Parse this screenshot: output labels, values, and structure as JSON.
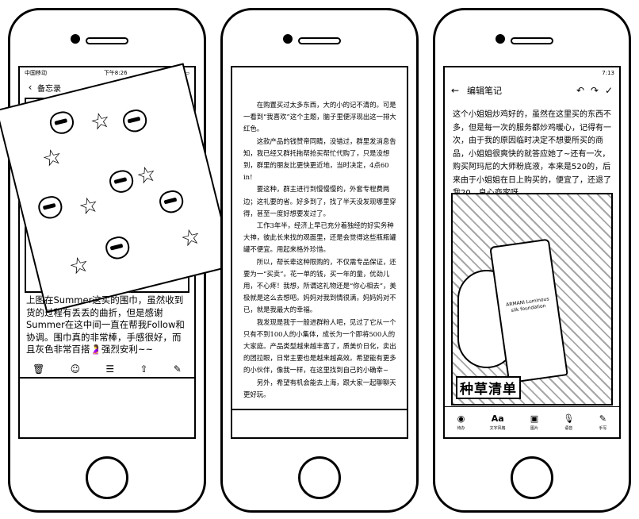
{
  "phone1": {
    "status": {
      "carrier": "中国移动",
      "time": "下午8:26"
    },
    "nav": {
      "back_label": "备忘录",
      "back_icon": "chevron-left-icon"
    },
    "caption": "上图在Summer这买的围巾，虽然收到货的过程有丢丢的曲折，但是感谢Summer在这中间一直在帮我Follow和协调。围巾真的非常棒，手感很好，而且灰色非常百搭🤰强烈安利~~",
    "toolbar": [
      "trash-icon",
      "smile-icon",
      "list-icon",
      "share-icon",
      "compose-icon"
    ]
  },
  "phone2": {
    "paragraphs": [
      "在购置买过太多东西，大的小的记不清的。可是一看到“我喜欢”这个主题，脑子里便浮现出这一排大红色。",
      "这款产品的钱赞帝同睛，没错过，群里发消息告知，我已经又群托拖帮抢买帮忙代购了，只是没想到，群里的朋友比更快更近地，当时决定，4点60 in!",
      "要这种，群主进行到慢慢慢的，外套专程费两边；这礼要的省。好多到了，找了半天没发现哪里穿得，甚至一度好想要发过了。",
      "工作3年半，经济上早已充分着独经的好实务种大神，彼此长来找的观面里，还是会觉得这些瓶瓶罐罐不便宜。用起来格外珍惜。",
      "所以，帮长辈这种限购的，不仅需专品保证，还要为一“买卖”。花一单的钱，买一年的量，优劲儿用，不心疼！我想，所谓这礼物还是“你心相去”，美极就是这么去想吧。妈妈对我到情很满，妈妈妈对不已，就是我最大的幸福。",
      "我发现是我于一般进群粉人吧，见过了它从一个只有不到100人的小集体，成长为一个即将500人的大家庭。产品类型越来越丰富了，质美价日化，卖出的团拉眼，日常主要也是越来越高效。希望能有更多的小伙伴，像我一样，在这里找到自己的小确幸~",
      "另外，希望有机会能去上海，跟大家一起聊聊天更好玩。"
    ]
  },
  "phone3": {
    "status": {
      "time": "7:13"
    },
    "nav": {
      "title": "编辑笔记",
      "back_icon": "arrow-left-icon"
    },
    "text": "这个小姐姐炒鸡好的，虽然在这里买的东西不多，但是每一次的服务都炒鸡暖心，记得有一次，由于我的原因临时决定不想要所买的商品，小姐姐很爽快的就答应她了~还有一次，购买阿玛尼的大师粉底液，本来是520的，后来由于小姐姐在日上购买的，便宜了，还退了我20，良心商家呀",
    "banner": "种草清单",
    "bottle_label": "ARMANI Luminous silk foundation",
    "toolbar": [
      {
        "icon": "check-circle-icon",
        "label": "待办"
      },
      {
        "icon": "text-format-icon",
        "label": "文字风格"
      },
      {
        "icon": "image-icon",
        "label": "图片"
      },
      {
        "icon": "microphone-icon",
        "label": "语音"
      },
      {
        "icon": "pen-icon",
        "label": "手写"
      }
    ]
  }
}
